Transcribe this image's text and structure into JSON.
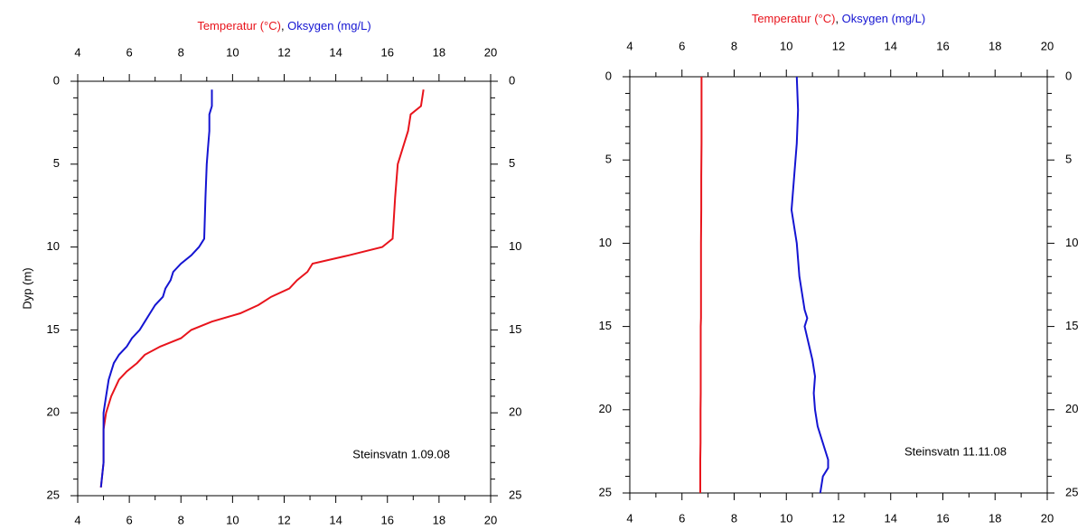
{
  "chart_data": [
    {
      "type": "line",
      "legend_separator": ", ",
      "ylabel": "Dyp (m)",
      "annotation": "Steinsvatn 1.09.08",
      "xlim": [
        4,
        20
      ],
      "xticks": [
        4,
        6,
        8,
        10,
        12,
        14,
        16,
        18,
        20
      ],
      "ylim": [
        0,
        25
      ],
      "yticks": [
        0,
        5,
        10,
        15,
        20,
        25
      ],
      "y_inverted": true,
      "y": [
        0.5,
        1.5,
        2,
        3,
        4,
        5,
        7,
        9.5,
        10,
        10.5,
        11,
        11.5,
        12,
        12.5,
        13,
        13.5,
        14,
        14.5,
        15,
        15.5,
        16,
        16.5,
        17,
        17.5,
        18,
        19,
        20,
        21,
        23,
        24.5
      ],
      "series": [
        {
          "name": "Temperatur (°C)",
          "color": "#e8141c",
          "values": [
            17.4,
            17.3,
            16.9,
            16.8,
            16.6,
            16.4,
            16.3,
            16.2,
            15.8,
            14.5,
            13.1,
            12.9,
            12.5,
            12.2,
            11.5,
            11.0,
            10.3,
            9.2,
            8.4,
            8.0,
            7.2,
            6.6,
            6.3,
            5.9,
            5.6,
            5.3,
            5.1,
            5.0,
            5.0,
            4.9
          ]
        },
        {
          "name": "Oksygen (mg/L)",
          "color": "#1414d2",
          "values": [
            9.2,
            9.2,
            9.1,
            9.1,
            9.05,
            9.0,
            8.95,
            8.9,
            8.7,
            8.4,
            8.0,
            7.7,
            7.6,
            7.4,
            7.3,
            7.0,
            6.8,
            6.6,
            6.4,
            6.1,
            5.9,
            5.6,
            5.4,
            5.3,
            5.2,
            5.1,
            5.0,
            5.0,
            5.0,
            4.9
          ]
        }
      ]
    },
    {
      "type": "line",
      "legend_separator": ", ",
      "annotation": "Steinsvatn 11.11.08",
      "xlim": [
        4,
        20
      ],
      "xticks": [
        4,
        6,
        8,
        10,
        12,
        14,
        16,
        18,
        20
      ],
      "ylim": [
        0,
        25
      ],
      "yticks": [
        0,
        5,
        10,
        15,
        20,
        25
      ],
      "y_inverted": true,
      "y": [
        0,
        2,
        4,
        6,
        8,
        10,
        12,
        14,
        14.5,
        15,
        17,
        18,
        19,
        20,
        21,
        22,
        23,
        23.5,
        24,
        25
      ],
      "series": [
        {
          "name": "Temperatur (°C)",
          "color": "#e8141c",
          "values": [
            6.75,
            6.75,
            6.75,
            6.74,
            6.74,
            6.73,
            6.73,
            6.73,
            6.73,
            6.72,
            6.72,
            6.72,
            6.72,
            6.71,
            6.71,
            6.71,
            6.7,
            6.7,
            6.7,
            6.7
          ]
        },
        {
          "name": "Oksygen (mg/L)",
          "color": "#1414d2",
          "values": [
            10.4,
            10.45,
            10.4,
            10.3,
            10.2,
            10.4,
            10.5,
            10.7,
            10.8,
            10.7,
            11.0,
            11.1,
            11.05,
            11.1,
            11.2,
            11.4,
            11.6,
            11.6,
            11.4,
            11.3
          ]
        }
      ]
    }
  ]
}
